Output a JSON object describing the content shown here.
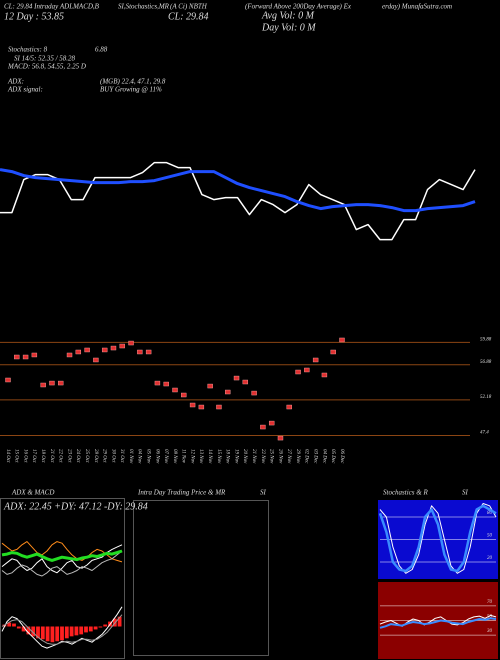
{
  "header": {
    "lines": [
      "CL: 29.84 Intraday ADLMACD,B",
      "12 Day : 53.85",
      "SI,Stochastics,MR",
      "(A Ci) NBTH",
      "CL: 29.84",
      "(Forward Above 200Day Average) Ex",
      "Avg Vol: 0 M",
      "Day Vol: 0 M",
      "erday) MunafaSutra.com"
    ]
  },
  "stats": [
    "Stochastics: 8",
    "6.88",
    "SI 14/5: 52.35 / 58.28",
    "MACD: 56.8, 54.55, 2.25 D",
    "ADX:",
    "(MGB) 22.4, 47.1, 29.8",
    "ADX signal:",
    "BUY Growing @ 11%"
  ],
  "panels": {
    "adx_title": "ADX & MACD",
    "adx_text": "ADX: 22.45 +DY: 47.12 -DY: 29.84",
    "intraday_title": "Intra Day Trading Price & MR",
    "intraday_si": "SI",
    "stoch_title": "Stochastics & R",
    "stoch_si": "SI"
  },
  "chart_data": [
    {
      "type": "line",
      "ylim": [
        22,
        32
      ],
      "series": [
        {
          "color": "#ffffff",
          "width": 1.5,
          "values": [
            25.54,
            25.54,
            28.84,
            29.34,
            29.34,
            28.84,
            26.84,
            26.84,
            29.04,
            29.04,
            29.04,
            29.04,
            29.54,
            30.54,
            30.54,
            30.04,
            30.04,
            27.34,
            26.84,
            27.04,
            27.04,
            25.34,
            26.84,
            26.34,
            25.54,
            26.34,
            28.34,
            27.34,
            26.84,
            26.34,
            23.84,
            24.34,
            22.84,
            22.84,
            24.84,
            24.84,
            27.84,
            28.84,
            28.34,
            27.84,
            29.84
          ]
        },
        {
          "color": "#1f4fff",
          "width": 3,
          "values": [
            29.84,
            29.64,
            29.24,
            29.04,
            28.94,
            28.84,
            28.74,
            28.64,
            28.54,
            28.54,
            28.54,
            28.64,
            28.64,
            28.74,
            29.04,
            29.34,
            29.64,
            29.64,
            29.64,
            29.04,
            28.44,
            28.04,
            27.74,
            27.44,
            27.14,
            26.64,
            26.24,
            25.94,
            26.14,
            26.24,
            26.34,
            26.34,
            26.24,
            26.04,
            25.74,
            25.74,
            25.94,
            26.04,
            26.14,
            26.24,
            26.64
          ]
        }
      ]
    },
    {
      "type": "dash",
      "ylim": [
        46,
        61
      ],
      "yticks": [
        59.88,
        56.88,
        52.18,
        47.4
      ],
      "grid_color": "#8b4513",
      "color": "#e03030",
      "categories": [
        "14 Oct",
        "15 Oct",
        "16 Oct",
        "17 Oct",
        "18 Oct",
        "21 Oct",
        "22 Oct",
        "23 Oct",
        "24 Oct",
        "25 Oct",
        "28 Oct",
        "29 Oct",
        "30 Oct",
        "31 Oct",
        "01 Nov",
        "04 Nov",
        "05 Nov",
        "06 Nov",
        "07 Nov",
        "08 Nov",
        "11 Nov",
        "12 Nov",
        "13 Nov",
        "14 Nov",
        "15 Nov",
        "18 Nov",
        "19 Nov",
        "20 Nov",
        "21 Nov",
        "22 Nov",
        "25 Nov",
        "26 Nov",
        "27 Nov",
        "29 Nov",
        "02 Dec",
        "03 Dec",
        "04 Dec",
        "05 Dec",
        "06 Dec"
      ],
      "values": [
        54.84,
        57.92,
        57.92,
        58.19,
        54.17,
        54.43,
        54.43,
        58.19,
        58.59,
        58.86,
        57.52,
        58.86,
        59.12,
        59.39,
        59.79,
        58.59,
        58.59,
        54.43,
        54.3,
        53.5,
        52.83,
        51.49,
        51.22,
        54.03,
        51.22,
        53.23,
        55.1,
        54.57,
        53.09,
        48.54,
        49.07,
        47.06,
        51.22,
        55.91,
        56.18,
        57.52,
        55.51,
        58.59,
        60.2
      ]
    },
    {
      "type": "line",
      "ylim": [
        0,
        100
      ],
      "series": [
        {
          "color": "#ff8c1a",
          "width": 1,
          "values": [
            60,
            55,
            50,
            52,
            58,
            62,
            55,
            48,
            45,
            50,
            58,
            62,
            60,
            52,
            45,
            40,
            38,
            42,
            48,
            52,
            50,
            45,
            40,
            38,
            36
          ]
        },
        {
          "color": "#ffffff",
          "width": 1,
          "values": [
            30,
            35,
            40,
            38,
            30,
            25,
            28,
            35,
            40,
            30,
            25,
            22,
            28,
            35,
            38,
            30,
            28,
            32,
            38,
            40,
            42,
            48,
            52,
            55,
            58
          ]
        },
        {
          "color": "#bbbbbb",
          "width": 1,
          "values": [
            25,
            20,
            22,
            28,
            32,
            30,
            25,
            20,
            18,
            22,
            28,
            30,
            25,
            20,
            22,
            25,
            30,
            28,
            25,
            30,
            35,
            38,
            40,
            45,
            50
          ]
        },
        {
          "color": "#22dd22",
          "width": 3,
          "values": [
            45,
            46,
            48,
            47,
            44,
            42,
            44,
            46,
            43,
            40,
            38,
            40,
            42,
            41,
            40,
            39,
            41,
            42,
            44,
            43,
            45,
            47,
            46,
            48,
            50
          ]
        }
      ]
    },
    {
      "type": "bar",
      "ylim": [
        -3,
        3
      ],
      "color": "#ff2020",
      "values": [
        0.2,
        0.4,
        0.3,
        -0.2,
        -0.5,
        -0.8,
        -1,
        -1.2,
        -1.3,
        -1.5,
        -1.6,
        -1.5,
        -1.4,
        -1.2,
        -1,
        -0.9,
        -0.8,
        -0.6,
        -0.5,
        -0.3,
        -0.1,
        0.2,
        0.5,
        0.8,
        1
      ],
      "series": [
        {
          "color": "#ffffff",
          "width": 1,
          "values": [
            -0.5,
            0.5,
            1,
            0.8,
            0.2,
            -0.5,
            -1,
            -1.5,
            -2,
            -2.2,
            -2,
            -1.8,
            -1.5,
            -1.6,
            -1.8,
            -1.5,
            -1.2,
            -1.4,
            -1.6,
            -1.2,
            -0.8,
            -0.2,
            0.5,
            1.2,
            2
          ]
        },
        {
          "color": "#999999",
          "width": 1,
          "values": [
            0,
            0.3,
            0.6,
            0.7,
            0.5,
            0,
            -0.5,
            -1,
            -1.4,
            -1.7,
            -1.8,
            -1.8,
            -1.6,
            -1.5,
            -1.6,
            -1.5,
            -1.3,
            -1.3,
            -1.4,
            -1.3,
            -1,
            -0.6,
            0,
            0.6,
            1.2
          ]
        }
      ]
    },
    {
      "type": "line",
      "ylim": [
        0,
        100
      ],
      "yticks": [
        20,
        50,
        80
      ],
      "background": "#0a0ad0",
      "series": [
        {
          "color": "#ffffff",
          "width": 1,
          "values": [
            90,
            80,
            40,
            15,
            5,
            10,
            30,
            70,
            95,
            85,
            50,
            15,
            5,
            10,
            40,
            85,
            98,
            95,
            80
          ]
        },
        {
          "color": "#3a8cff",
          "width": 2.5,
          "values": [
            85,
            60,
            20,
            10,
            8,
            15,
            40,
            80,
            90,
            70,
            30,
            10,
            8,
            20,
            60,
            90,
            95,
            90,
            85
          ]
        }
      ]
    },
    {
      "type": "line",
      "ylim": [
        0,
        100
      ],
      "yticks": [
        30,
        50,
        70
      ],
      "background": "#8b0000",
      "series": [
        {
          "color": "#ffffff",
          "width": 1,
          "values": [
            45,
            48,
            50,
            46,
            42,
            48,
            52,
            50,
            44,
            48,
            53,
            55,
            50,
            45,
            44,
            47,
            52,
            55,
            56,
            53,
            57,
            55
          ]
        },
        {
          "color": "#3a8cff",
          "width": 2,
          "values": [
            40,
            42,
            45,
            44,
            43,
            46,
            48,
            47,
            45,
            46,
            48,
            50,
            49,
            47,
            46,
            45,
            48,
            50,
            52,
            51,
            53,
            52
          ]
        }
      ]
    }
  ]
}
